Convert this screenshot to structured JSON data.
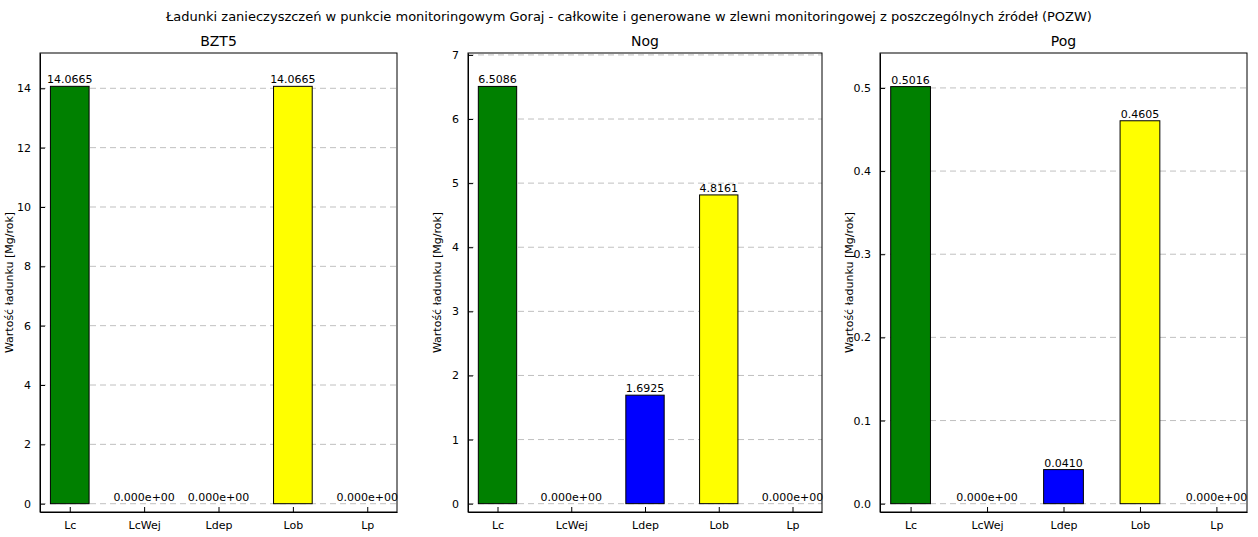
{
  "title": "Ładunki zanieczyszczeń w punkcie monitoringowym Goraj - całkowite i generowane w zlewni monitoringowej z poszczególnych źródeł (POZW)",
  "chart_data": [
    {
      "type": "bar",
      "title": "BZT5",
      "y_label": "Wartość ładunku  [Mg/rok]",
      "categories": [
        "Lc",
        "LcWej",
        "Ldep",
        "Lob",
        "Lp"
      ],
      "values": [
        14.0665,
        0,
        0,
        14.0665,
        0
      ],
      "value_labels": [
        "14.0665",
        "0.000e+00",
        "0.000e+00",
        "14.0665",
        "0.000e+00"
      ],
      "colors": [
        "#008000",
        "#ff0000",
        "#0000ff",
        "#ffff00",
        "#808080"
      ],
      "ylim": [
        -0.28,
        15.19
      ],
      "yticks": [
        0,
        2,
        4,
        6,
        8,
        10,
        12,
        14
      ],
      "grid": true,
      "data_labels": true
    },
    {
      "type": "bar",
      "title": "Nog",
      "y_label": "Wartość ładunku  [Mg/rok]",
      "categories": [
        "Lc",
        "LcWej",
        "Ldep",
        "Lob",
        "Lp"
      ],
      "values": [
        6.5086,
        0,
        1.6925,
        4.8161,
        0
      ],
      "value_labels": [
        "6.5086",
        "0.000e+00",
        "1.6925",
        "4.8161",
        "0.000e+00"
      ],
      "colors": [
        "#008000",
        "#ff0000",
        "#0000ff",
        "#ffff00",
        "#808080"
      ],
      "ylim": [
        -0.13,
        7.03
      ],
      "yticks": [
        0,
        1,
        2,
        3,
        4,
        5,
        6,
        7
      ],
      "grid": true,
      "data_labels": true
    },
    {
      "type": "bar",
      "title": "Pog",
      "y_label": "Wartość ładunku  [Mg/rok]",
      "categories": [
        "Lc",
        "LcWej",
        "Ldep",
        "Lob",
        "Lp"
      ],
      "values": [
        0.5016,
        0,
        0.041,
        0.4605,
        0
      ],
      "value_labels": [
        "0.5016",
        "0.000e+00",
        "0.0410",
        "0.4605",
        "0.000e+00"
      ],
      "colors": [
        "#008000",
        "#ff0000",
        "#0000ff",
        "#ffff00",
        "#808080"
      ],
      "ylim": [
        -0.01,
        0.542
      ],
      "yticks": [
        {
          "value": 0,
          "label": "0.0"
        },
        0.1,
        0.2,
        0.3,
        0.4,
        0.5
      ],
      "grid": true,
      "data_labels": true
    }
  ]
}
